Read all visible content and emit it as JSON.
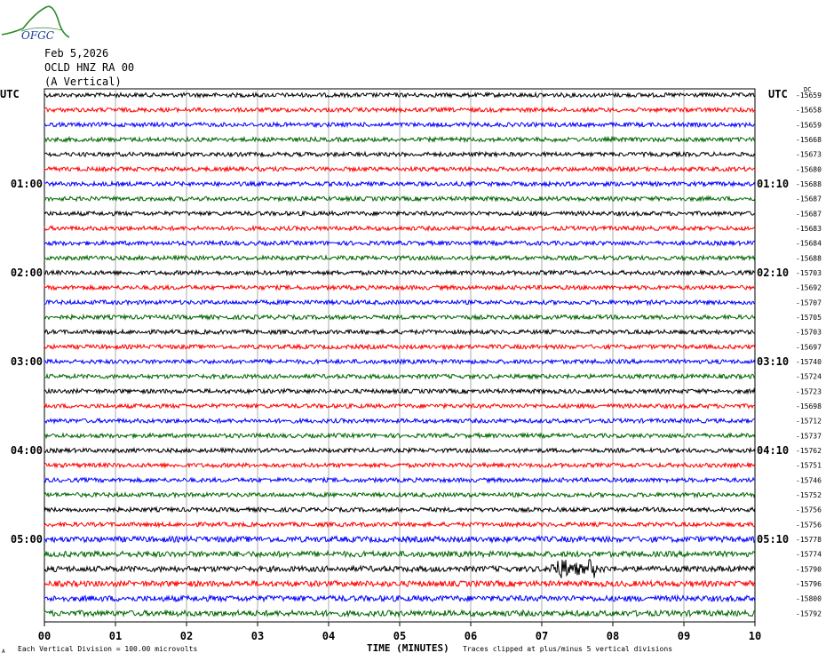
{
  "logo_text": "OFGC",
  "header": {
    "date": "Feb 5,2026",
    "station": "OCLD HNZ RA 00",
    "component": "(A Vertical)"
  },
  "colors": {
    "trace_cycle": [
      "#000000",
      "#ff0000",
      "#0000ff",
      "#006600"
    ],
    "grid": "#888888",
    "logo": "#2a8a2a",
    "logo_text": "#1a3a9a"
  },
  "chart_data": {
    "type": "line",
    "title": "",
    "xlabel": "TIME (MINUTES)",
    "x_ticks": [
      "00",
      "01",
      "02",
      "03",
      "04",
      "05",
      "06",
      "07",
      "08",
      "09",
      "10"
    ],
    "xlim": [
      0,
      10
    ],
    "left_axis_title": "UTC",
    "right_axis_title": "UTC",
    "right_axis_top_label": "DC",
    "left_time_labels": [
      {
        "row": 6,
        "label": "01:00"
      },
      {
        "row": 12,
        "label": "02:00"
      },
      {
        "row": 18,
        "label": "03:00"
      },
      {
        "row": 24,
        "label": "04:00"
      },
      {
        "row": 30,
        "label": "05:00"
      }
    ],
    "right_time_labels": [
      {
        "row": 6,
        "label": "01:10"
      },
      {
        "row": 12,
        "label": "02:10"
      },
      {
        "row": 18,
        "label": "03:10"
      },
      {
        "row": 24,
        "label": "04:10"
      },
      {
        "row": 30,
        "label": "05:10"
      }
    ],
    "trace_offsets": [
      -15659,
      -15658,
      -15659,
      -15668,
      -15673,
      -15680,
      -15688,
      -15687,
      -15687,
      -15683,
      -15684,
      -15688,
      -15703,
      -15692,
      -15707,
      -15705,
      -15703,
      -15697,
      -15740,
      -15724,
      -15723,
      -15698,
      -15712,
      -15737,
      -15762,
      -15751,
      -15746,
      -15752,
      -15756,
      -15756,
      -15778,
      -15774,
      -15790,
      -15796,
      -15800,
      -15792
    ],
    "event": {
      "row": 32,
      "x_start": 7.1,
      "x_end": 7.9,
      "x_peak": 7.3
    },
    "footer_left": "Each Vertical Division =  100.00 microvolts",
    "footer_right": "Traces clipped at plus/minus 5 vertical divisions",
    "footer_mark": "A"
  }
}
